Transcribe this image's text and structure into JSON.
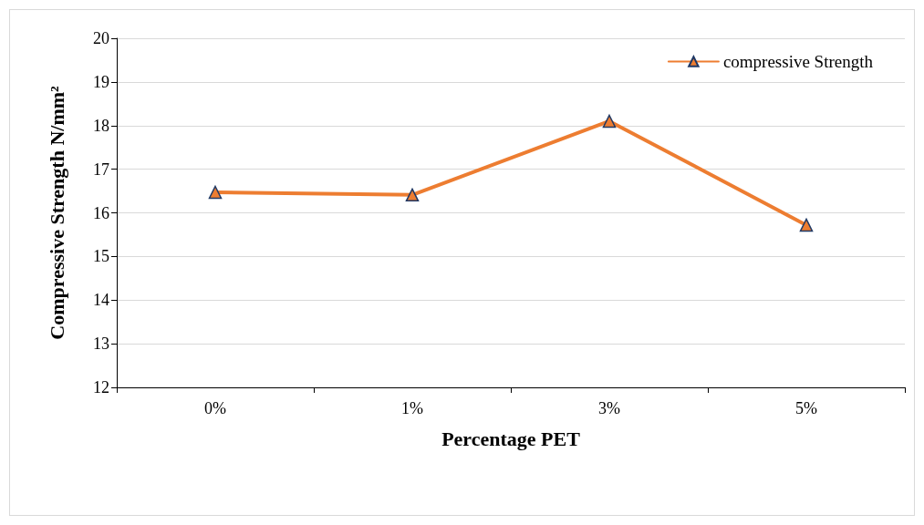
{
  "chart_data": {
    "type": "line",
    "xlabel": "Percentage PET",
    "ylabel": "Compressive Strength N/mm²",
    "categories": [
      "0%",
      "1%",
      "3%",
      "5%"
    ],
    "series": [
      {
        "name": "compressive Strength",
        "color": "#ed7d31",
        "values": [
          16.47,
          16.41,
          18.1,
          15.72
        ]
      }
    ],
    "ylim": [
      12,
      20
    ],
    "yticks": [
      12,
      13,
      14,
      15,
      16,
      17,
      18,
      19,
      20
    ],
    "grid": "y",
    "legend": "top right",
    "marker": "triangle",
    "line_style": "solid"
  }
}
